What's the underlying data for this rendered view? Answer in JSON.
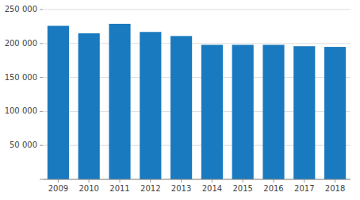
{
  "chart_data": {
    "type": "bar",
    "categories": [
      "2009",
      "2010",
      "2011",
      "2012",
      "2013",
      "2014",
      "2015",
      "2016",
      "2017",
      "2018"
    ],
    "values": [
      226000,
      215000,
      229000,
      217000,
      211000,
      198000,
      198000,
      198000,
      196000,
      195000
    ],
    "color": "#1a7abf",
    "ylim": [
      0,
      250000
    ],
    "yticks": [
      {
        "value": 0,
        "label": null
      },
      {
        "value": 50000,
        "label": "50 000"
      },
      {
        "value": 100000,
        "label": "100 000"
      },
      {
        "value": 150000,
        "label": "150 000"
      },
      {
        "value": 200000,
        "label": "200 000"
      },
      {
        "value": 250000,
        "label": "250 000"
      }
    ],
    "grid": true
  }
}
